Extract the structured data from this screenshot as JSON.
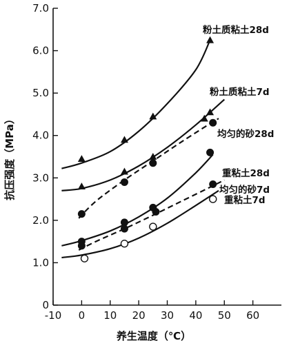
{
  "chart_data": {
    "type": "scatter",
    "xlabel": "养生温度（℃）",
    "ylabel": "抗压强度（MPa）",
    "xlim": [
      -10,
      70
    ],
    "ylim": [
      0,
      7.0
    ],
    "x_ticks": [
      -10,
      0,
      10,
      20,
      30,
      40,
      50,
      60
    ],
    "y_ticks": [
      "0",
      "1.0",
      "2.0",
      "3.0",
      "4.0",
      "5.0",
      "6.0",
      "7.0"
    ],
    "grid": false,
    "legend": "none",
    "series": [
      {
        "name": "粉土质粘土28d",
        "marker": "triangle",
        "line": "solid",
        "points": [
          [
            0,
            3.45
          ],
          [
            15,
            3.9
          ],
          [
            25,
            4.45
          ],
          [
            45,
            6.25
          ]
        ],
        "curve": [
          [
            -7,
            3.22
          ],
          [
            0,
            3.35
          ],
          [
            10,
            3.62
          ],
          [
            20,
            4.1
          ],
          [
            30,
            4.75
          ],
          [
            40,
            5.55
          ],
          [
            45,
            6.25
          ]
        ]
      },
      {
        "name": "粉土质粘土7d",
        "marker": "triangle",
        "line": "solid",
        "points": [
          [
            0,
            2.8
          ],
          [
            15,
            3.15
          ],
          [
            25,
            3.5
          ],
          [
            43,
            4.4
          ],
          [
            45,
            4.55
          ]
        ],
        "curve": [
          [
            -7,
            2.7
          ],
          [
            0,
            2.75
          ],
          [
            10,
            2.95
          ],
          [
            20,
            3.28
          ],
          [
            30,
            3.72
          ],
          [
            40,
            4.25
          ],
          [
            50,
            4.85
          ]
        ]
      },
      {
        "name": "均匀的砂28d",
        "marker": "filled-circle",
        "line": "dashed",
        "points": [
          [
            0,
            2.15
          ],
          [
            15,
            2.9
          ],
          [
            25,
            3.35
          ],
          [
            46,
            4.3
          ]
        ],
        "curve": [
          [
            -1,
            2.05
          ],
          [
            5,
            2.45
          ],
          [
            15,
            2.95
          ],
          [
            25,
            3.4
          ],
          [
            35,
            3.85
          ],
          [
            45,
            4.28
          ],
          [
            48,
            4.4
          ]
        ]
      },
      {
        "name": "重粘土28d",
        "marker": "filled-circle",
        "line": "solid",
        "points": [
          [
            0,
            1.5
          ],
          [
            15,
            1.95
          ],
          [
            25,
            2.3
          ],
          [
            45,
            3.6
          ]
        ],
        "curve": [
          [
            -7,
            1.4
          ],
          [
            0,
            1.52
          ],
          [
            10,
            1.75
          ],
          [
            20,
            2.08
          ],
          [
            30,
            2.52
          ],
          [
            40,
            3.12
          ],
          [
            46,
            3.55
          ]
        ]
      },
      {
        "name": "均匀的砂7d",
        "marker": "filled-circle",
        "line": "dashed",
        "points": [
          [
            0,
            1.4
          ],
          [
            15,
            1.8
          ],
          [
            26,
            2.2
          ],
          [
            46,
            2.85
          ]
        ],
        "curve": [
          [
            -1,
            1.3
          ],
          [
            5,
            1.5
          ],
          [
            15,
            1.8
          ],
          [
            25,
            2.12
          ],
          [
            35,
            2.45
          ],
          [
            45,
            2.78
          ],
          [
            50,
            2.95
          ]
        ]
      },
      {
        "name": "重粘土7d",
        "marker": "open-circle",
        "line": "solid",
        "points": [
          [
            1,
            1.1
          ],
          [
            15,
            1.45
          ],
          [
            25,
            1.85
          ],
          [
            46,
            2.5
          ]
        ],
        "curve": [
          [
            -7,
            1.12
          ],
          [
            0,
            1.18
          ],
          [
            10,
            1.33
          ],
          [
            20,
            1.58
          ],
          [
            30,
            1.93
          ],
          [
            40,
            2.35
          ],
          [
            48,
            2.7
          ]
        ]
      }
    ]
  }
}
